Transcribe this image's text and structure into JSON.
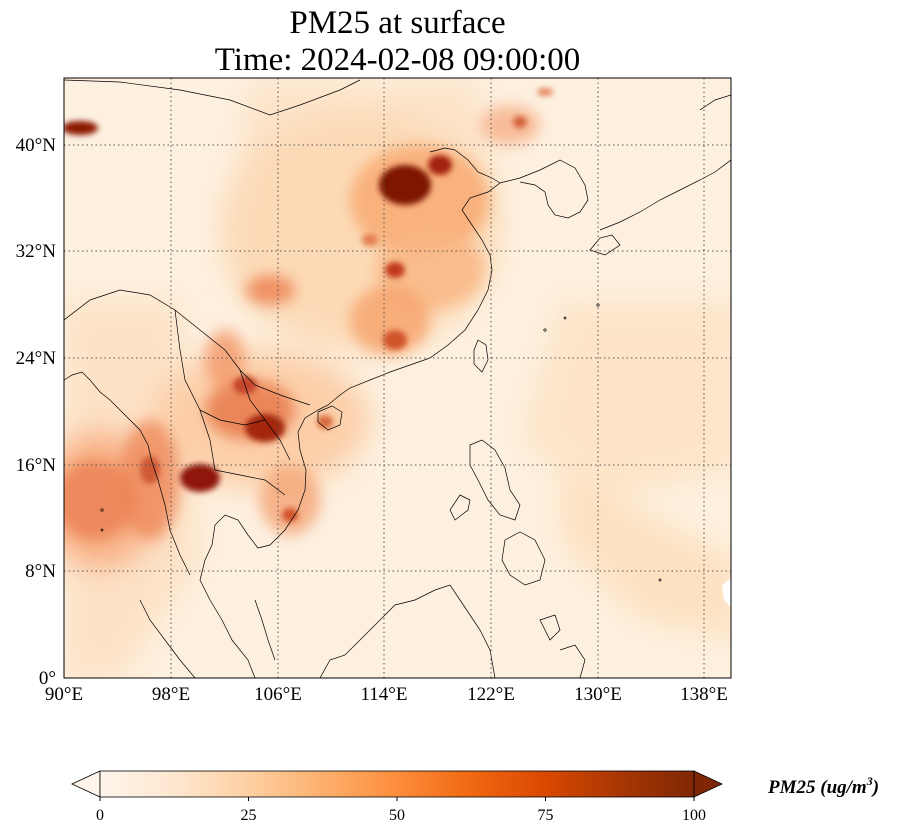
{
  "title": {
    "line1": "PM25 at surface",
    "line2": "Time: 2024-02-08 09:00:00"
  },
  "axes": {
    "lon_ticks": [
      "90°E",
      "98°E",
      "106°E",
      "114°E",
      "122°E",
      "130°E",
      "138°E"
    ],
    "lat_ticks": [
      "0°",
      "8°N",
      "16°N",
      "24°N",
      "32°N",
      "40°N"
    ],
    "lon_range": [
      90,
      140
    ],
    "lat_range": [
      0,
      45
    ],
    "gridlines": "dotted"
  },
  "colorbar": {
    "label": "PM25 (ug/m",
    "label_sup": "3",
    "label_close": ")",
    "ticks": [
      "0",
      "25",
      "50",
      "75",
      "100"
    ],
    "range": [
      0,
      100
    ],
    "colormap": [
      "#fff5eb",
      "#fee6ce",
      "#fdd0a2",
      "#fdae6b",
      "#fd8d3c",
      "#f16913",
      "#d94801",
      "#a63603",
      "#7f2704"
    ],
    "extend": "both"
  },
  "chart_data": {
    "type": "heatmap",
    "variable": "PM25",
    "region": "East / Southeast Asia",
    "hotspots": [
      {
        "lon": 115.5,
        "lat": 37.0,
        "value": 100
      },
      {
        "lon": 91.5,
        "lat": 41.0,
        "value": 95
      },
      {
        "lon": 101.5,
        "lat": 15.0,
        "value": 95
      },
      {
        "lon": 105.5,
        "lat": 18.5,
        "value": 85
      },
      {
        "lon": 116.5,
        "lat": 39.0,
        "value": 85
      },
      {
        "lon": 113.5,
        "lat": 30.5,
        "value": 70
      },
      {
        "lon": 114.0,
        "lat": 25.5,
        "value": 65
      },
      {
        "lon": 97.0,
        "lat": 14.5,
        "value": 60
      },
      {
        "lon": 104.0,
        "lat": 23.0,
        "value": 55
      },
      {
        "lon": 109.5,
        "lat": 18.8,
        "value": 55
      },
      {
        "lon": 106.0,
        "lat": 29.5,
        "value": 50
      },
      {
        "lon": 124.5,
        "lat": 42.5,
        "value": 45
      }
    ]
  }
}
